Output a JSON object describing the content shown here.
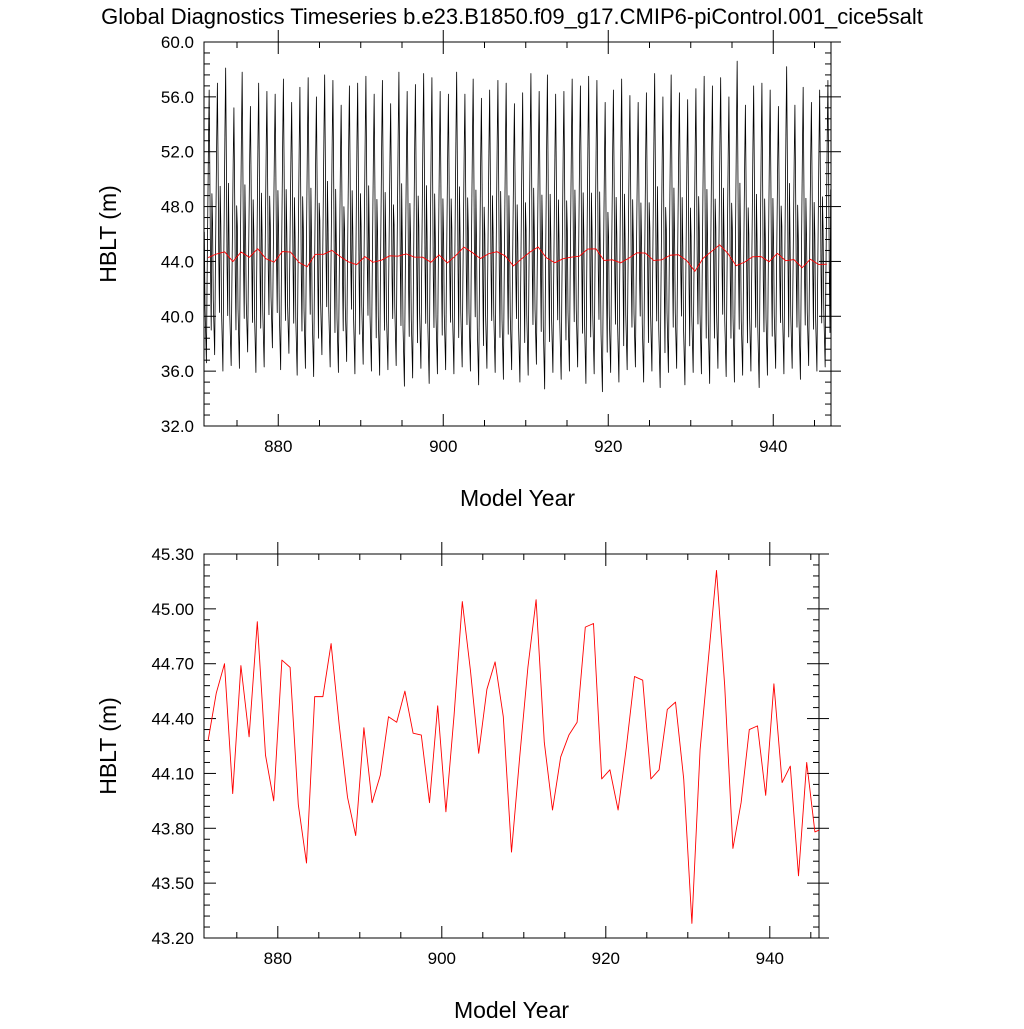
{
  "title": "Global Diagnostics Timeseries b.e23.B1850.f09_g17.CMIP6-piControl.001_cice5salt",
  "colors": {
    "monthly": "#000000",
    "annual": "#ff0000",
    "axis": "#000000"
  },
  "chart_data": [
    {
      "type": "line",
      "xlabel": "Model Year",
      "ylabel": "HBLT (m)",
      "xlim": [
        871,
        947
      ],
      "ylim": [
        32.0,
        60.0
      ],
      "x_ticks": [
        880,
        900,
        920,
        940
      ],
      "x_tick_labels": [
        "880",
        "900",
        "920",
        "940"
      ],
      "y_ticks": [
        32,
        36,
        40,
        44,
        48,
        52,
        56,
        60
      ],
      "y_tick_labels": [
        "32.0",
        "36.0",
        "40.0",
        "44.0",
        "48.0",
        "52.0",
        "56.0",
        "60.0"
      ],
      "series": [
        {
          "color": "#000000",
          "style": "monthly",
          "annual_max": [
            56.5,
            57.0,
            58.1,
            55.2,
            57.8,
            55.3,
            57.0,
            56.4,
            56.2,
            57.3,
            55.6,
            56.7,
            57.4,
            56.0,
            57.6,
            57.2,
            55.4,
            56.8,
            57.0,
            57.5,
            56.2,
            57.2,
            55.5,
            57.8,
            56.4,
            56.9,
            57.7,
            57.4,
            56.4,
            56.2,
            57.8,
            56.2,
            57.3,
            55.9,
            56.5,
            57.2,
            57.0,
            55.5,
            56.3,
            57.7,
            56.4,
            57.6,
            56.2,
            56.4,
            57.3,
            56.8,
            57.5,
            57.2,
            55.6,
            56.5,
            57.3,
            56.1,
            55.6,
            56.3,
            57.7,
            56.0,
            57.6,
            56.3,
            55.8,
            56.6,
            57.5,
            56.8,
            57.4,
            56.0,
            58.6,
            55.4,
            56.8,
            57.0,
            56.5,
            55.3,
            58.2,
            55.4,
            56.7,
            55.6,
            56.5,
            57.2
          ],
          "annual_min": [
            36.6,
            37.2,
            36.0,
            36.4,
            36.2,
            37.4,
            35.9,
            36.3,
            37.7,
            36.1,
            37.3,
            35.7,
            36.2,
            35.6,
            37.2,
            36.3,
            35.9,
            36.7,
            35.8,
            36.5,
            36.0,
            35.7,
            36.1,
            36.4,
            34.9,
            35.5,
            36.2,
            35.1,
            35.8,
            36.1,
            35.8,
            36.3,
            36.0,
            35.0,
            36.2,
            35.9,
            35.4,
            36.1,
            35.2,
            35.7,
            36.5,
            34.7,
            35.9,
            35.4,
            36.0,
            36.3,
            35.1,
            35.8,
            34.5,
            35.9,
            35.2,
            36.1,
            36.3,
            35.2,
            36.0,
            34.8,
            35.9,
            36.2,
            35.0,
            35.9,
            35.8,
            35.1,
            36.2,
            35.6,
            35.2,
            35.7,
            36.0,
            34.8,
            35.7,
            36.2,
            35.8,
            36.2,
            35.4,
            36.4,
            36.0,
            36.3
          ]
        },
        {
          "color": "#ff0000",
          "style": "annual",
          "x": [
            871.5,
            872.5,
            873.5,
            874.5,
            875.5,
            876.5,
            877.5,
            878.5,
            879.5,
            880.5,
            881.5,
            882.5,
            883.5,
            884.5,
            885.5,
            886.5,
            887.5,
            888.5,
            889.5,
            890.5,
            891.5,
            892.5,
            893.5,
            894.5,
            895.5,
            896.5,
            897.5,
            898.5,
            899.5,
            900.5,
            901.5,
            902.5,
            903.5,
            904.5,
            905.5,
            906.5,
            907.5,
            908.5,
            909.5,
            910.5,
            911.5,
            912.5,
            913.5,
            914.5,
            915.5,
            916.5,
            917.5,
            918.5,
            919.5,
            920.5,
            921.5,
            922.5,
            923.5,
            924.5,
            925.5,
            926.5,
            927.5,
            928.5,
            929.5,
            930.5,
            931.5,
            932.5,
            933.5,
            934.5,
            935.5,
            936.5,
            937.5,
            938.5,
            939.5,
            940.5,
            941.5,
            942.5,
            943.5,
            944.5,
            945.5,
            946.5
          ],
          "values": [
            44.28,
            44.54,
            44.7,
            43.99,
            44.69,
            44.3,
            44.93,
            44.2,
            43.95,
            44.72,
            44.68,
            43.93,
            43.61,
            44.52,
            44.52,
            44.81,
            44.36,
            43.97,
            43.76,
            44.35,
            43.94,
            44.09,
            44.41,
            44.38,
            44.55,
            44.32,
            44.31,
            43.94,
            44.47,
            43.89,
            44.42,
            45.04,
            44.66,
            44.21,
            44.56,
            44.71,
            44.41,
            43.67,
            44.19,
            44.68,
            45.05,
            44.27,
            43.9,
            44.19,
            44.31,
            44.38,
            44.9,
            44.92,
            44.07,
            44.12,
            43.9,
            44.24,
            44.63,
            44.61,
            44.07,
            44.12,
            44.45,
            44.49,
            44.07,
            43.28,
            44.23,
            44.72,
            45.21,
            44.58,
            43.69,
            43.94,
            44.34,
            44.36,
            43.98,
            44.59,
            44.05,
            44.14,
            43.54,
            44.16,
            43.78,
            43.8
          ]
        }
      ]
    },
    {
      "type": "line",
      "xlabel": "Model Year",
      "ylabel": "HBLT (m)",
      "xlim": [
        871,
        946
      ],
      "ylim": [
        43.2,
        45.3
      ],
      "x_ticks": [
        880,
        900,
        920,
        940
      ],
      "x_tick_labels": [
        "880",
        "900",
        "920",
        "940"
      ],
      "y_ticks": [
        43.2,
        43.5,
        43.8,
        44.1,
        44.4,
        44.7,
        45.0,
        45.3
      ],
      "y_tick_labels": [
        "43.20",
        "43.50",
        "43.80",
        "44.10",
        "44.40",
        "44.70",
        "45.00",
        "45.30"
      ],
      "series": [
        {
          "color": "#ff0000",
          "style": "annual",
          "x": [
            871.5,
            872.5,
            873.5,
            874.5,
            875.5,
            876.5,
            877.5,
            878.5,
            879.5,
            880.5,
            881.5,
            882.5,
            883.5,
            884.5,
            885.5,
            886.5,
            887.5,
            888.5,
            889.5,
            890.5,
            891.5,
            892.5,
            893.5,
            894.5,
            895.5,
            896.5,
            897.5,
            898.5,
            899.5,
            900.5,
            901.5,
            902.5,
            903.5,
            904.5,
            905.5,
            906.5,
            907.5,
            908.5,
            909.5,
            910.5,
            911.5,
            912.5,
            913.5,
            914.5,
            915.5,
            916.5,
            917.5,
            918.5,
            919.5,
            920.5,
            921.5,
            922.5,
            923.5,
            924.5,
            925.5,
            926.5,
            927.5,
            928.5,
            929.5,
            930.5,
            931.5,
            932.5,
            933.5,
            934.5,
            935.5,
            936.5,
            937.5,
            938.5,
            939.5,
            940.5,
            941.5,
            942.5,
            943.5,
            944.5,
            945.5,
            946.5
          ],
          "values": [
            44.28,
            44.54,
            44.7,
            43.99,
            44.69,
            44.3,
            44.93,
            44.2,
            43.95,
            44.72,
            44.68,
            43.93,
            43.61,
            44.52,
            44.52,
            44.81,
            44.36,
            43.97,
            43.76,
            44.35,
            43.94,
            44.09,
            44.41,
            44.38,
            44.55,
            44.32,
            44.31,
            43.94,
            44.47,
            43.89,
            44.42,
            45.04,
            44.66,
            44.21,
            44.56,
            44.71,
            44.41,
            43.67,
            44.19,
            44.68,
            45.05,
            44.27,
            43.9,
            44.19,
            44.31,
            44.38,
            44.9,
            44.92,
            44.07,
            44.12,
            43.9,
            44.24,
            44.63,
            44.61,
            44.07,
            44.12,
            44.45,
            44.49,
            44.07,
            43.28,
            44.23,
            44.72,
            45.21,
            44.58,
            43.69,
            43.94,
            44.34,
            44.36,
            43.98,
            44.59,
            44.05,
            44.14,
            43.54,
            44.16,
            43.78,
            43.8
          ]
        }
      ]
    }
  ]
}
